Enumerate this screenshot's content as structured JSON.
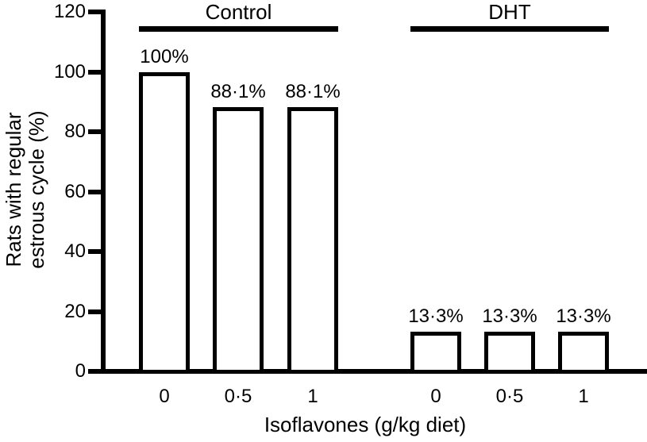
{
  "chart_data": {
    "type": "bar",
    "title": "",
    "ylabel_lines": [
      "Rats with regular",
      "estrous cycle (%)"
    ],
    "xlabel": "Isoflavones (g/kg diet)",
    "ylim": [
      0,
      120
    ],
    "ytick_labels": [
      "0",
      "20",
      "40",
      "60",
      "80",
      "100",
      "120"
    ],
    "ytick_values": [
      0,
      20,
      40,
      60,
      80,
      100,
      120
    ],
    "grid": false,
    "legend_position": "none",
    "colors": {
      "background": "#ffffff",
      "ink": "#000000",
      "bar_fill": "#ffffff",
      "bar_border": "#000000"
    },
    "groups": [
      {
        "name": "Control",
        "categories": [
          "0",
          "0·5",
          "1"
        ],
        "values": [
          100,
          88.1,
          88.1
        ],
        "bar_labels": [
          "100%",
          "88·1%",
          "88·1%"
        ]
      },
      {
        "name": "DHT",
        "categories": [
          "0",
          "0·5",
          "1"
        ],
        "values": [
          13.3,
          13.3,
          13.3
        ],
        "bar_labels": [
          "13·3%",
          "13·3%",
          "13·3%"
        ]
      }
    ]
  }
}
